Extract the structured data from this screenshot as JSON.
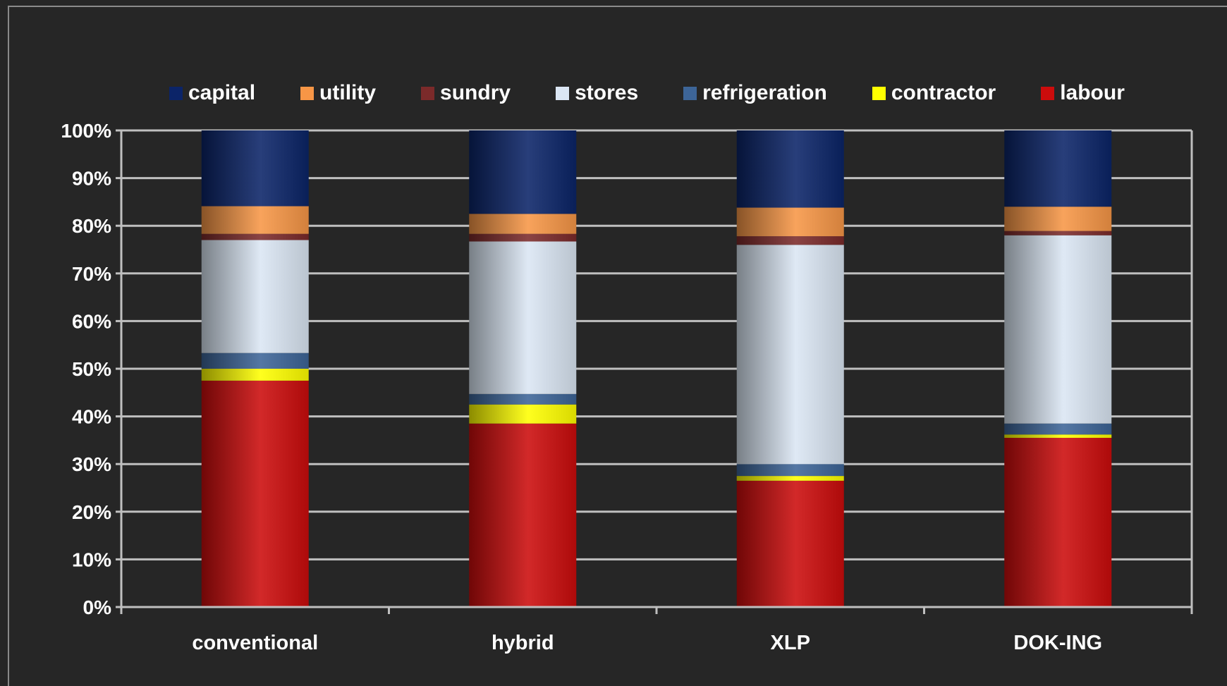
{
  "colors": {
    "capital": "#0b2468",
    "utility": "#f79646",
    "sundry": "#7b2a2a",
    "stores": "#dbe6f4",
    "refrigeration": "#3d6598",
    "contractor": "#ffff00",
    "labour": "#cc0c0c",
    "background": "#262626",
    "grid": "#bfbfbf",
    "text": "#ffffff"
  },
  "chart_data": {
    "type": "bar",
    "stacked": true,
    "percent": true,
    "categories": [
      "conventional",
      "hybrid",
      "XLP",
      "DOK-ING"
    ],
    "ylim": [
      0,
      100
    ],
    "yticks": [
      "0%",
      "10%",
      "20%",
      "30%",
      "40%",
      "50%",
      "60%",
      "70%",
      "80%",
      "90%",
      "100%"
    ],
    "grid": true,
    "legend_position": "top",
    "series": [
      {
        "name": "labour",
        "color_key": "labour",
        "values": [
          47.5,
          38.5,
          26.5,
          35.5
        ]
      },
      {
        "name": "contractor",
        "color_key": "contractor",
        "values": [
          2.5,
          4.0,
          1.0,
          0.7
        ]
      },
      {
        "name": "refrigeration",
        "color_key": "refrigeration",
        "values": [
          3.3,
          2.2,
          2.5,
          2.3
        ]
      },
      {
        "name": "stores",
        "color_key": "stores",
        "values": [
          23.7,
          32.0,
          46.0,
          39.5
        ]
      },
      {
        "name": "sundry",
        "color_key": "sundry",
        "values": [
          1.3,
          1.6,
          1.8,
          0.9
        ]
      },
      {
        "name": "utility",
        "color_key": "utility",
        "values": [
          5.8,
          4.2,
          6.0,
          5.1
        ]
      },
      {
        "name": "capital",
        "color_key": "capital",
        "values": [
          15.9,
          17.5,
          16.2,
          16.0
        ]
      }
    ],
    "legend_order": [
      "capital",
      "utility",
      "sundry",
      "stores",
      "refrigeration",
      "contractor",
      "labour"
    ]
  }
}
